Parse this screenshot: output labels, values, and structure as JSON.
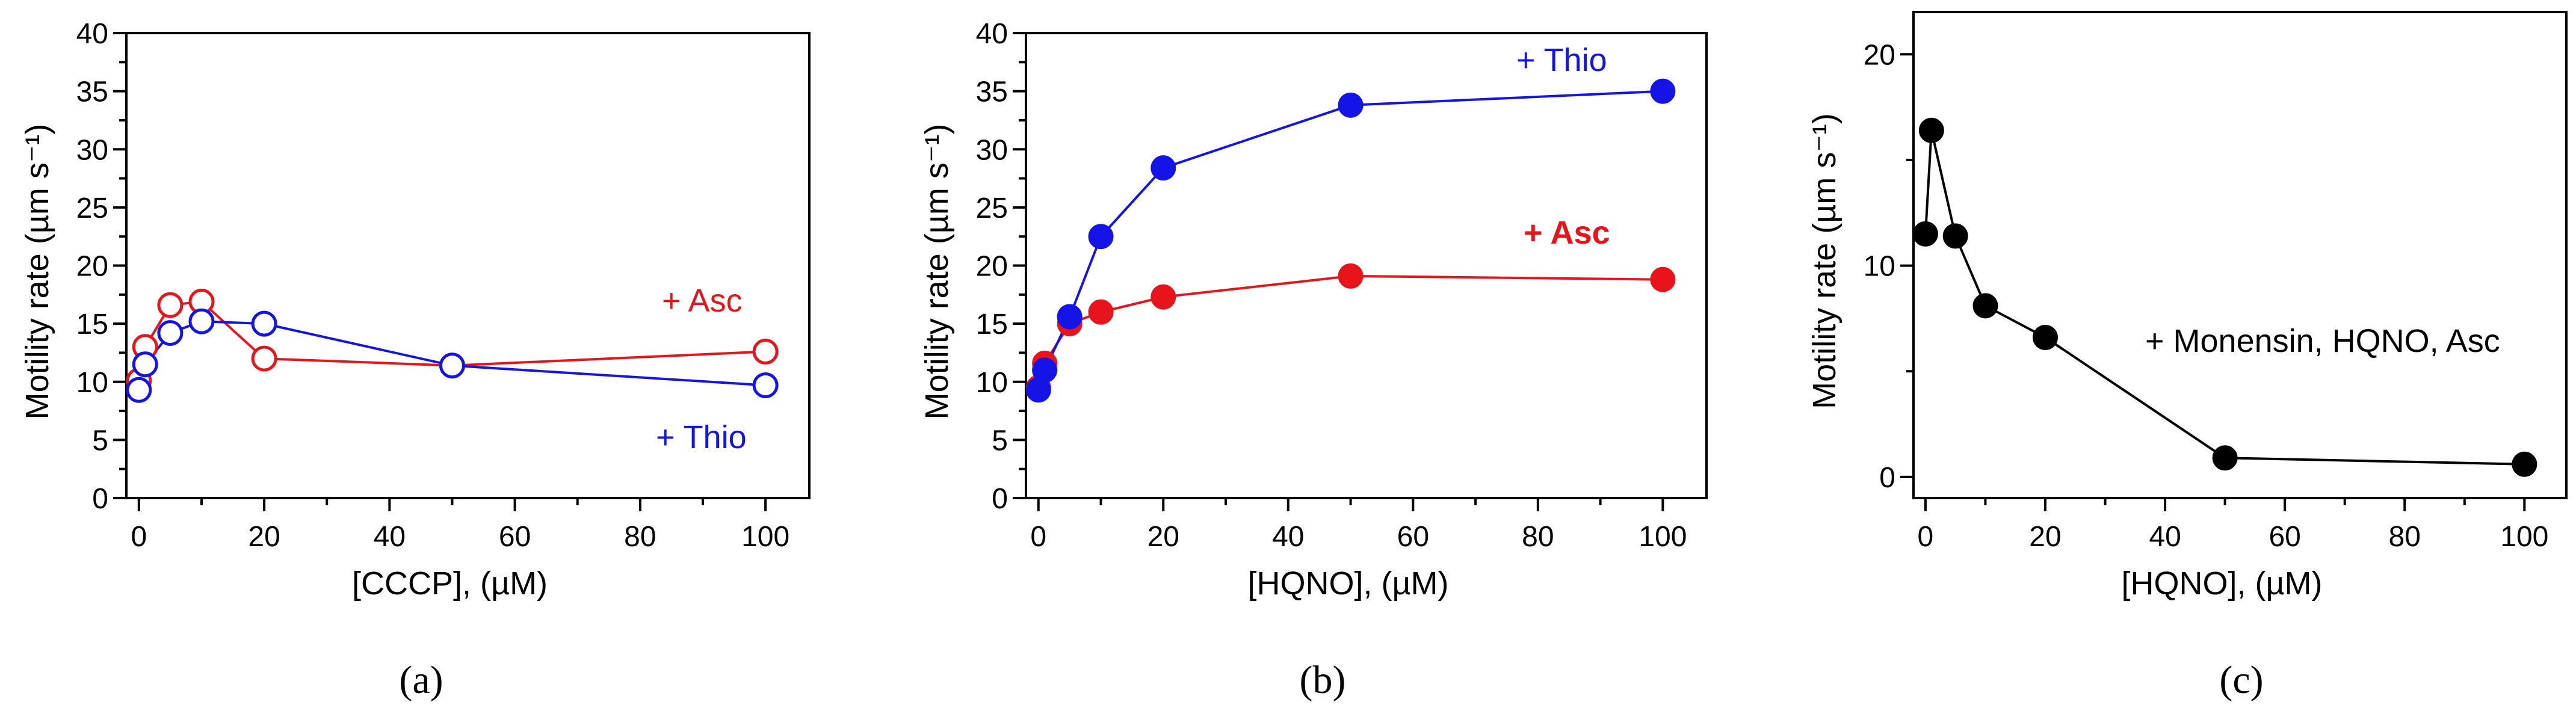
{
  "chart_data": [
    {
      "type": "line",
      "panel": "(a)",
      "xlabel": "[CCCP], (µM)",
      "ylabel": "Motility rate (µm s⁻¹)",
      "xlim": [
        -2,
        107
      ],
      "ylim": [
        0,
        40
      ],
      "xticks": [
        0,
        20,
        40,
        60,
        80,
        100
      ],
      "yticks": [
        0,
        5,
        10,
        15,
        20,
        25,
        30,
        35,
        40
      ],
      "marker": "open",
      "annotations": [
        {
          "text": "+ Asc",
          "color": "#e8141b",
          "bold": false
        },
        {
          "text": "+ Thio",
          "color": "#1414e6",
          "bold": false
        }
      ],
      "series": [
        {
          "name": "+ Asc",
          "color": "#e8141b",
          "x": [
            0,
            1,
            5,
            10,
            20,
            50,
            100
          ],
          "y": [
            10.1,
            13.0,
            16.6,
            16.9,
            12.0,
            11.4,
            12.6
          ]
        },
        {
          "name": "+ Thio",
          "color": "#1414e6",
          "x": [
            0,
            1,
            5,
            10,
            20,
            50,
            100
          ],
          "y": [
            9.3,
            11.5,
            14.2,
            15.2,
            15.0,
            11.4,
            9.7
          ]
        }
      ]
    },
    {
      "type": "line",
      "panel": "(b)",
      "xlabel": "[HQNO], (µM)",
      "ylabel": "Motility rate (µm s⁻¹)",
      "xlim": [
        -2,
        107
      ],
      "ylim": [
        0,
        40
      ],
      "xticks": [
        0,
        20,
        40,
        60,
        80,
        100
      ],
      "yticks": [
        0,
        5,
        10,
        15,
        20,
        25,
        30,
        35,
        40
      ],
      "marker": "filled",
      "annotations": [
        {
          "text": "+ Thio",
          "color": "#1414e6",
          "bold": false
        },
        {
          "text": "+ Asc",
          "color": "#e8141b",
          "bold": true
        }
      ],
      "series": [
        {
          "name": "+ Asc",
          "color": "#e8141b",
          "x": [
            0,
            1,
            5,
            10,
            20,
            50,
            100
          ],
          "y": [
            9.5,
            11.6,
            15.0,
            16.0,
            17.3,
            19.1,
            18.8
          ]
        },
        {
          "name": "+ Thio",
          "color": "#1414e6",
          "x": [
            0,
            1,
            5,
            10,
            20,
            50,
            100
          ],
          "y": [
            9.3,
            11.0,
            15.6,
            22.5,
            28.4,
            33.8,
            35.0
          ]
        }
      ]
    },
    {
      "type": "line",
      "panel": "(c)",
      "xlabel": "[HQNO], (µM)",
      "ylabel": "Motility rate (µm s⁻¹)",
      "xlim": [
        -2,
        107
      ],
      "ylim": [
        -1,
        22
      ],
      "xticks": [
        0,
        20,
        40,
        60,
        80,
        100
      ],
      "yticks": [
        0,
        10,
        20
      ],
      "marker": "filled",
      "annotations": [
        {
          "text": "+ Monensin, HQNO, Asc",
          "color": "#000000",
          "bold": false
        }
      ],
      "series": [
        {
          "name": "+ Monensin, HQNO, Asc",
          "color": "#000000",
          "x": [
            0,
            1,
            5,
            10,
            20,
            50,
            100
          ],
          "y": [
            11.5,
            16.4,
            11.4,
            8.1,
            6.6,
            0.9,
            0.6
          ]
        }
      ]
    }
  ]
}
